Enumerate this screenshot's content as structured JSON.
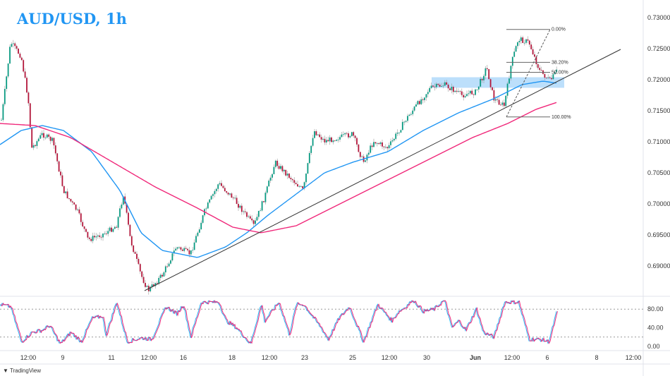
{
  "title": "AUD/USD, 1h",
  "brand": "TradingView",
  "chart_data": {
    "type": "candlestick",
    "title": "AUD/USD, 1h",
    "price_ticks": [
      "0.73000",
      "0.72500",
      "0.72000",
      "0.71500",
      "0.71000",
      "0.70500",
      "0.70000",
      "0.69500",
      "0.69000"
    ],
    "ylim": [
      0.6855,
      0.732
    ],
    "time_ticks": [
      "12:00",
      "9",
      "11",
      "12:00",
      "16",
      "18",
      "12:00",
      "23",
      "25",
      "12:00",
      "30",
      "Jun",
      "12:00",
      "6",
      "8",
      "12:00"
    ],
    "fib_levels": [
      {
        "label": "0.00%",
        "price": 0.7281
      },
      {
        "label": "38.20%",
        "price": 0.7228
      },
      {
        "label": "50.00%",
        "price": 0.7212
      },
      {
        "label": "100.00%",
        "price": 0.714
      }
    ],
    "support_zone": [
      0.7187,
      0.7204
    ],
    "indicator": {
      "ticks": [
        "80.00",
        "40.00",
        "0.00"
      ],
      "levels": [
        80,
        20
      ],
      "range": [
        0,
        100
      ]
    },
    "colors": {
      "up": "#089981",
      "down": "#b2163a",
      "ma_fast": "#2196f3",
      "ma_slow": "#f0287a",
      "zone": "#90caf9",
      "title": "#2196f3"
    }
  }
}
